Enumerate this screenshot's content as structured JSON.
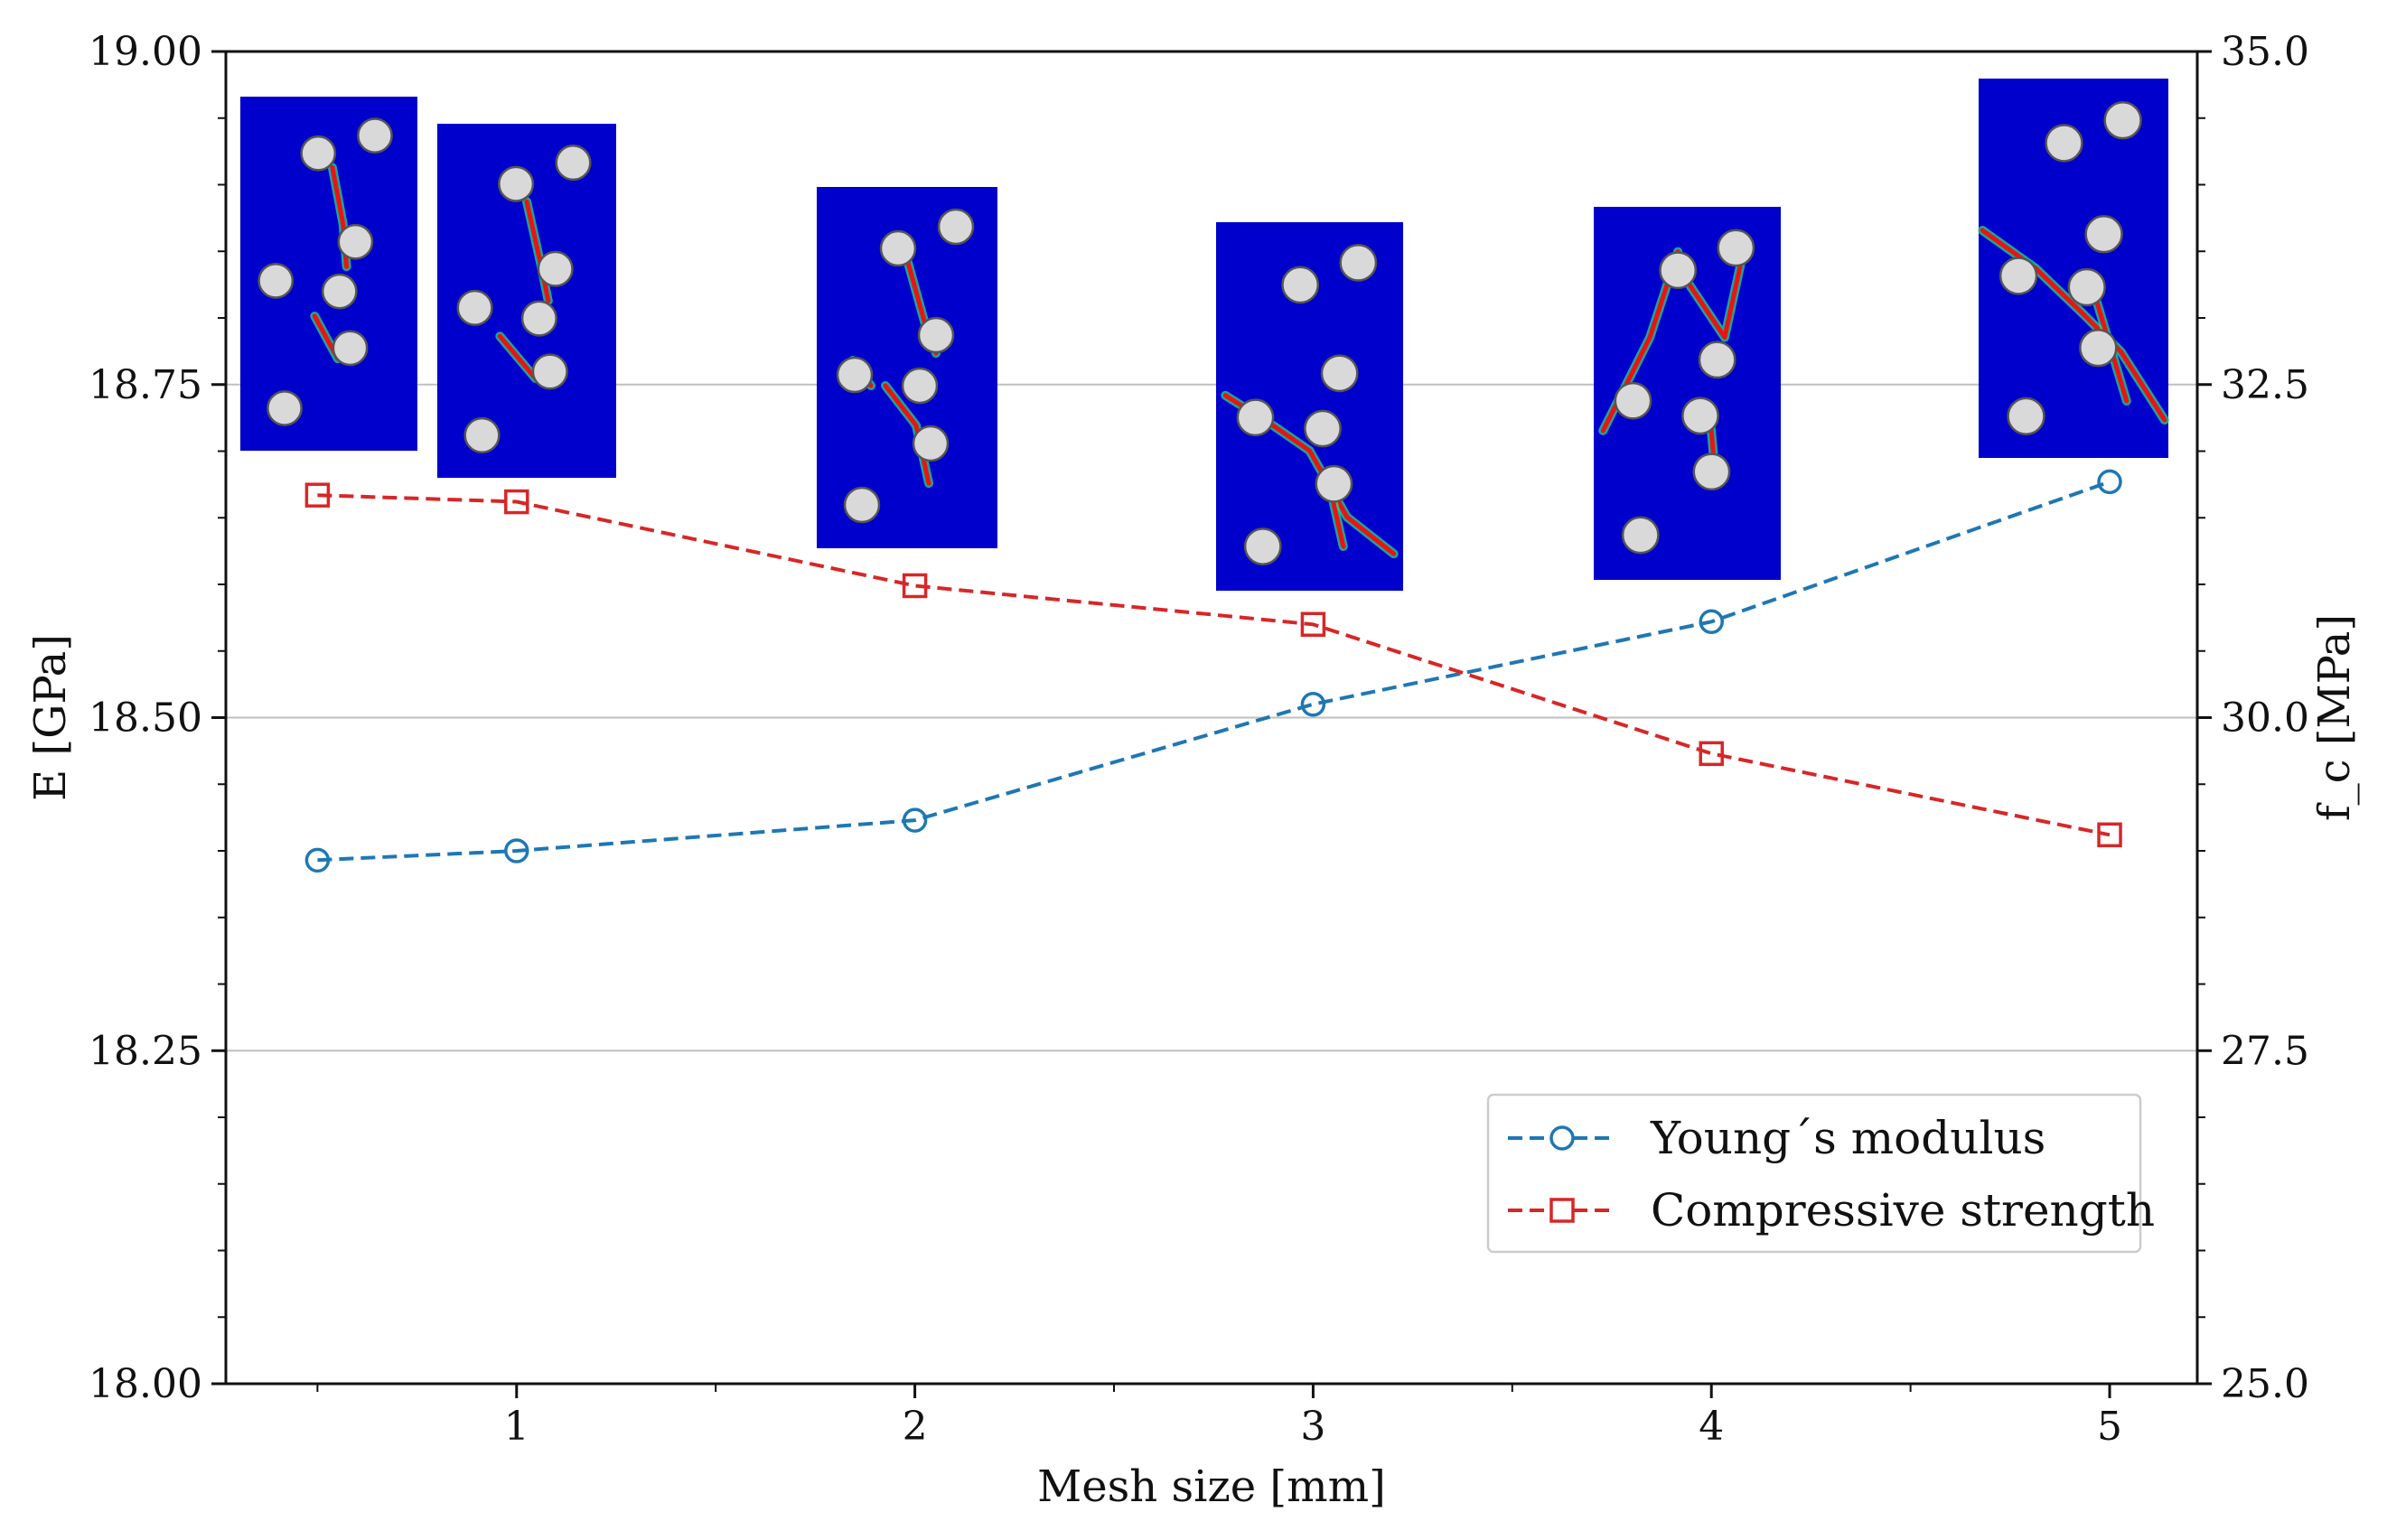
{
  "chart_data": {
    "type": "line",
    "x": [
      0.5,
      1,
      2,
      3,
      4,
      5
    ],
    "xlabel": "Mesh size [mm]",
    "xlim": [
      0.27,
      5.22
    ],
    "xticks": [
      "1",
      "2",
      "3",
      "4",
      "5"
    ],
    "ylabel_left": "E [GPa]",
    "ylim_left": [
      18.0,
      19.0
    ],
    "yticks_left": [
      "18.00",
      "18.25",
      "18.50",
      "18.75",
      "19.00"
    ],
    "ylabel_right": "f_c [MPa]",
    "ylim_right": [
      25.0,
      35.0
    ],
    "yticks_right": [
      "25.0",
      "27.5",
      "30.0",
      "32.5",
      "35.0"
    ],
    "grid": "horizontal",
    "legend_position": "lower-right",
    "series": [
      {
        "name": "Young´s modulus",
        "axis": "left",
        "marker": "circle",
        "color": "#1f77b4",
        "values": [
          18.393,
          18.4,
          18.423,
          18.51,
          18.572,
          18.677
        ]
      },
      {
        "name": "Compressive strength",
        "axis": "right",
        "marker": "square",
        "color": "#d62728",
        "values": [
          31.67,
          31.62,
          30.99,
          30.7,
          29.73,
          29.12
        ]
      }
    ],
    "insets": [
      {
        "name": "fracture-pattern-0.5mm",
        "x": 0.5
      },
      {
        "name": "fracture-pattern-1mm",
        "x": 1
      },
      {
        "name": "fracture-pattern-2mm",
        "x": 2
      },
      {
        "name": "fracture-pattern-3mm",
        "x": 3
      },
      {
        "name": "fracture-pattern-4mm",
        "x": 4
      },
      {
        "name": "fracture-pattern-5mm",
        "x": 5
      }
    ]
  },
  "colors": {
    "inset_background": "#0000cc",
    "aggregate": "#d9d9d9",
    "crack": "#ee1111",
    "crack_halo": "#22dd88",
    "grid": "#bfbfbf"
  }
}
